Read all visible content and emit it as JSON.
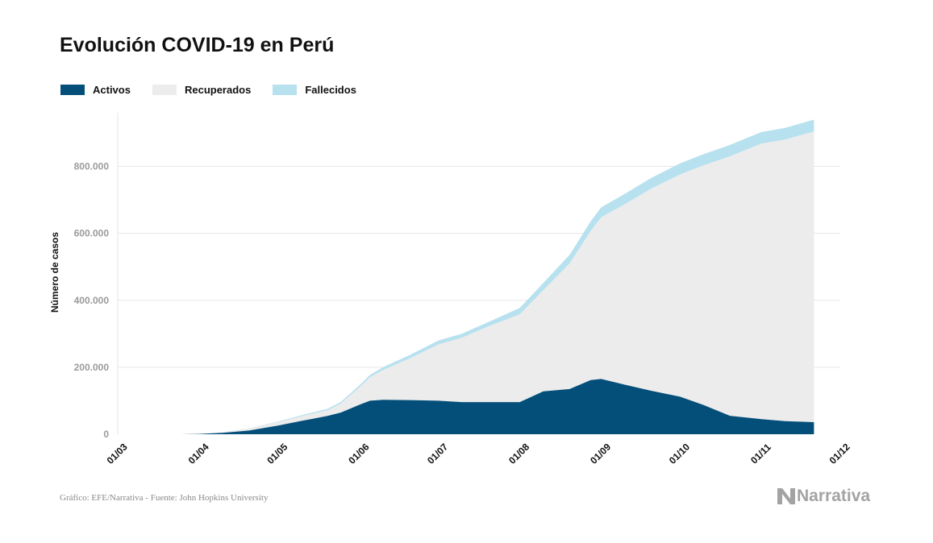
{
  "colors": {
    "activos": "#034f7a",
    "recuperados": "#ececec",
    "fallecidos": "#b7e1ef",
    "gridline": "#e6e6e6",
    "tick_text": "#9b9b9b",
    "axis_text": "#111111"
  },
  "footer": {
    "source": "Gráfico: EFE/Narrativa - Fuente: John Hopkins University",
    "brand": "Narrativa",
    "brand_icon": "narrativa-logo-icon"
  },
  "chart_data": {
    "type": "area",
    "stacked": true,
    "title": "Evolución COVID-19 en Perú",
    "xlabel": "",
    "ylabel": "Número de casos",
    "legend_position": "top-left",
    "grid": true,
    "ylim": [
      0,
      960000
    ],
    "y_ticks": [
      0,
      200000,
      400000,
      600000,
      800000
    ],
    "y_tick_labels": [
      "0",
      "200.000",
      "400.000",
      "600.000",
      "800.000"
    ],
    "xlim": [
      "2020-03-01",
      "2020-12-01"
    ],
    "x_ticks": [
      "2020-03-01",
      "2020-04-01",
      "2020-05-01",
      "2020-06-01",
      "2020-07-01",
      "2020-08-01",
      "2020-09-01",
      "2020-10-01",
      "2020-11-01",
      "2020-12-01"
    ],
    "x_tick_labels": [
      "01/03",
      "01/04",
      "01/05",
      "01/06",
      "01/07",
      "01/08",
      "01/09",
      "01/10",
      "01/11",
      "01/12"
    ],
    "x": [
      "2020-03-06",
      "2020-03-15",
      "2020-03-25",
      "2020-04-01",
      "2020-04-10",
      "2020-04-20",
      "2020-05-01",
      "2020-05-10",
      "2020-05-20",
      "2020-05-25",
      "2020-06-01",
      "2020-06-05",
      "2020-06-10",
      "2020-06-20",
      "2020-07-01",
      "2020-07-10",
      "2020-07-20",
      "2020-08-01",
      "2020-08-10",
      "2020-08-20",
      "2020-08-28",
      "2020-09-01",
      "2020-09-10",
      "2020-09-20",
      "2020-10-01",
      "2020-10-10",
      "2020-10-20",
      "2020-11-01",
      "2020-11-10",
      "2020-11-21"
    ],
    "series": [
      {
        "name": "Activos",
        "values": [
          0,
          0,
          0,
          1000,
          4000,
          11000,
          26000,
          40000,
          55000,
          65000,
          88000,
          100000,
          103000,
          102000,
          100000,
          96000,
          96000,
          96000,
          128000,
          135000,
          162000,
          165000,
          148000,
          130000,
          112000,
          87000,
          55000,
          45000,
          39000,
          36000
        ]
      },
      {
        "name": "Recuperados",
        "values": [
          0,
          0,
          0,
          200,
          2000,
          6000,
          10000,
          14000,
          17000,
          27000,
          52000,
          70000,
          89000,
          124000,
          168000,
          192000,
          226000,
          262000,
          302000,
          375000,
          445000,
          483000,
          539000,
          603000,
          664000,
          716000,
          775000,
          823000,
          841000,
          868000
        ]
      },
      {
        "name": "Fallecidos",
        "values": [
          0,
          0,
          0,
          50,
          300,
          700,
          1700,
          2900,
          4200,
          5000,
          6000,
          7000,
          8300,
          10000,
          11500,
          12200,
          13100,
          19000,
          22000,
          26000,
          29000,
          29500,
          31000,
          32000,
          33000,
          33500,
          33900,
          34600,
          35000,
          35500
        ]
      }
    ]
  }
}
